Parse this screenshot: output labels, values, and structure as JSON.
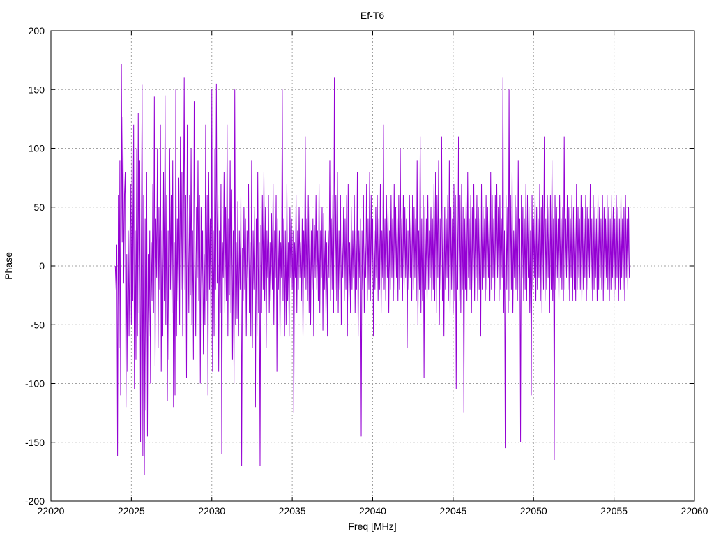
{
  "chart_data": {
    "type": "line",
    "title": "Ef-T6",
    "xlabel": "Freq [MHz]",
    "ylabel": "Phase",
    "xlim": [
      22020,
      22060
    ],
    "ylim": [
      -200,
      200
    ],
    "xticks": [
      "22020",
      "22025",
      "22030",
      "22035",
      "22040",
      "22045",
      "22050",
      "22055",
      "22060"
    ],
    "yticks": [
      "200",
      "150",
      "100",
      "50",
      "0",
      "-50",
      "-100",
      "-150",
      "-200"
    ],
    "grid": true,
    "series": [
      {
        "color": "#9400d3",
        "x_start": 22024.0,
        "x_end": 22056.0,
        "y": [
          0,
          -20,
          18,
          -162,
          60,
          -70,
          90,
          -110,
          172,
          20,
          127,
          -15,
          60,
          80,
          -120,
          10,
          -90,
          30,
          -60,
          20,
          70,
          -50,
          110,
          -30,
          120,
          -105,
          30,
          -80,
          100,
          -60,
          130,
          -40,
          90,
          -150,
          20,
          154,
          -162,
          60,
          -178,
          40,
          -123,
          80,
          -145,
          10,
          -60,
          30,
          -100,
          20,
          -30,
          70,
          -40,
          144,
          -85,
          40,
          -10,
          100,
          -70,
          50,
          -20,
          120,
          -90,
          30,
          -60,
          80,
          -30,
          145,
          -50,
          60,
          -115,
          30,
          -80,
          100,
          -20,
          60,
          -40,
          90,
          -120,
          20,
          -110,
          150,
          -60,
          40,
          -30,
          75,
          -50,
          110,
          -20,
          80,
          -60,
          30,
          160,
          -20,
          60,
          -95,
          120,
          30,
          -40,
          60,
          -25,
          100,
          -50,
          30,
          -80,
          140,
          20,
          -60,
          50,
          -10,
          90,
          -30,
          60,
          -100,
          50,
          -20,
          30,
          -75,
          10,
          -50,
          120,
          -30,
          60,
          -110,
          80,
          -20,
          40,
          -70,
          150,
          -90,
          30,
          -60,
          100,
          -20,
          155,
          -15,
          60,
          -90,
          30,
          -40,
          70,
          -160,
          20,
          -10,
          80,
          -40,
          50,
          -30,
          120,
          -60,
          40,
          -25,
          90,
          -40,
          65,
          -80,
          30,
          -100,
          150,
          -50,
          20,
          -45,
          55,
          -60,
          30,
          -20,
          60,
          -170,
          15,
          -30,
          50,
          -20,
          40,
          -60,
          30,
          -10,
          70,
          -40,
          20,
          -60,
          90,
          -70,
          30,
          -20,
          50,
          -120,
          40,
          -60,
          80,
          -40,
          20,
          -170,
          35,
          -40,
          60,
          -20,
          80,
          -30,
          50,
          -70,
          30,
          -10,
          60,
          -40,
          20,
          -30,
          45,
          -20,
          70,
          -50,
          30,
          -10,
          60,
          -90,
          40,
          -20,
          30,
          -60,
          20,
          -10,
          150,
          -30,
          40,
          -60,
          30,
          -50,
          70,
          -30,
          20,
          -60,
          50,
          -10,
          40,
          -20,
          30,
          -125,
          20,
          -10,
          60,
          -40,
          30,
          -20,
          50,
          -10,
          20,
          -30,
          40,
          -60,
          30,
          -10,
          110,
          -20,
          40,
          -30,
          60,
          -40,
          50,
          -50,
          30,
          -20,
          40,
          -60,
          35,
          -10,
          60,
          -20,
          30,
          -30,
          70,
          -40,
          30,
          -10,
          50,
          -55,
          45,
          -20,
          30,
          -40,
          20,
          -60,
          30,
          -10,
          90,
          -30,
          40,
          -20,
          60,
          -40,
          160,
          -20,
          60,
          -30,
          80,
          -40,
          30,
          -20,
          60,
          -50,
          20,
          -10,
          50,
          -30,
          40,
          -20,
          60,
          -60,
          70,
          -30,
          20,
          -40,
          50,
          -20,
          30,
          -10,
          60,
          -40,
          30,
          -20,
          80,
          -60,
          30,
          -10,
          40,
          -145,
          30,
          -20,
          60,
          -40,
          20,
          -10,
          70,
          -30,
          40,
          -20,
          80,
          -30,
          60,
          -10,
          40,
          -60,
          30,
          -20,
          50,
          -10,
          60,
          -30,
          40,
          -20,
          70,
          -40,
          30,
          -10,
          120,
          -20,
          40,
          -30,
          60,
          -10,
          50,
          -40,
          30,
          -20,
          60,
          -10,
          40,
          -30,
          70,
          -20,
          50,
          -10,
          40,
          -30,
          60,
          -20,
          100,
          -10,
          40,
          -30,
          60,
          -20,
          50,
          -10,
          40,
          -70,
          30,
          -20,
          60,
          -10,
          40,
          -30,
          60,
          -20,
          50,
          -10,
          40,
          -30,
          90,
          -50,
          30,
          -20,
          110,
          -40,
          40,
          -30,
          60,
          -95,
          50,
          -20,
          40,
          -30,
          60,
          -20,
          30,
          -10,
          50,
          -30,
          40,
          -20,
          70,
          -30,
          80,
          -40,
          60,
          -10,
          90,
          -50,
          40,
          -20,
          110,
          -30,
          40,
          -60,
          50,
          -20,
          40,
          -10,
          60,
          -30,
          90,
          -40,
          50,
          -20,
          40,
          -40,
          70,
          -30,
          60,
          -105,
          50,
          -20,
          110,
          -30,
          60,
          -40,
          70,
          -20,
          50,
          -125,
          40,
          -20,
          60,
          -30,
          80,
          -10,
          40,
          -20,
          60,
          -40,
          50,
          -20,
          70,
          -30,
          40,
          -10,
          60,
          -30,
          50,
          -20,
          40,
          -60,
          70,
          -20,
          50,
          -10,
          40,
          -30,
          60,
          -20,
          50,
          -10,
          40,
          -30,
          80,
          -20,
          60,
          -10,
          40,
          -30,
          60,
          -20,
          70,
          -10,
          50,
          -30,
          60,
          -20,
          40,
          -10,
          160,
          -40,
          30,
          -155,
          60,
          -20,
          50,
          -40,
          150,
          -30,
          60,
          -20,
          80,
          -40,
          30,
          -10,
          60,
          -20,
          50,
          -30,
          90,
          -20,
          40,
          -150,
          60,
          -10,
          50,
          -30,
          40,
          -20,
          70,
          -30,
          60,
          -10,
          50,
          -40,
          30,
          -110,
          60,
          -20,
          40,
          -10,
          60,
          -30,
          50,
          -20,
          40,
          -10,
          70,
          -30,
          50,
          -40,
          60,
          -20,
          110,
          -30,
          40,
          -20,
          60,
          -10,
          50,
          -40,
          60,
          -20,
          90,
          -30,
          40,
          -165,
          60,
          -20,
          50,
          -10,
          40,
          -30,
          60,
          -10,
          40,
          -20,
          50,
          -30,
          110,
          -20,
          40,
          -10,
          60,
          -20,
          50,
          -30,
          40,
          -10,
          60,
          -30,
          50,
          -20,
          40,
          -30,
          70,
          -20,
          50,
          -10,
          40,
          -20,
          60,
          -30,
          50,
          -20,
          40,
          -10,
          60,
          -30,
          50,
          -20,
          40,
          -10,
          70,
          -20,
          40,
          -30,
          60,
          -20,
          50,
          -10,
          40,
          -30,
          60,
          -20,
          50,
          -10,
          40,
          -20,
          60,
          -30,
          50,
          -20,
          40,
          -10,
          60,
          -20,
          50,
          -30,
          40,
          -20,
          60,
          -10,
          50,
          -30,
          40,
          -20,
          60,
          -10,
          50,
          -30,
          40,
          -20,
          60,
          -10,
          40,
          -20,
          50,
          -30,
          60,
          -10,
          40,
          -20,
          50,
          -10,
          0
        ]
      }
    ]
  }
}
